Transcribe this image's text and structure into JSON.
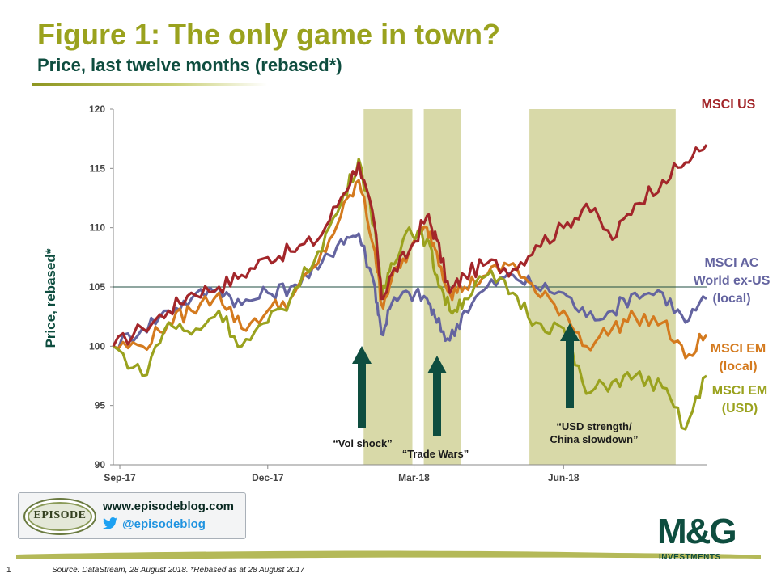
{
  "header": {
    "title": "Figure 1: The only game in town?",
    "subtitle": "Price, last twelve months (rebased*)"
  },
  "chart_data": {
    "type": "line",
    "ylabel": "Price, rebased*",
    "xlabel": "",
    "ylim": [
      90,
      120
    ],
    "y_ticks": [
      90,
      95,
      100,
      105,
      110,
      115,
      120
    ],
    "x_ticks": [
      "Sep-17",
      "Dec-17",
      "Mar-18",
      "Jun-18"
    ],
    "x_range": [
      "2017-08-28",
      "2018-08-28"
    ],
    "reference_line": 105,
    "shaded_periods": [
      {
        "start": "2018-01-29",
        "end": "2018-02-28",
        "label": "“Vol shock”"
      },
      {
        "start": "2018-03-07",
        "end": "2018-03-30",
        "label": "“Trade Wars”"
      },
      {
        "start": "2018-05-11",
        "end": "2018-08-09",
        "label": "“USD strength/ China slowdown”"
      }
    ],
    "series": [
      {
        "name": "MSCI US",
        "color": "#a3262a",
        "x": [
          "2017-08-28",
          "2017-09-15",
          "2017-10-01",
          "2017-10-15",
          "2017-11-01",
          "2017-11-15",
          "2017-12-01",
          "2017-12-15",
          "2018-01-01",
          "2018-01-15",
          "2018-01-26",
          "2018-02-05",
          "2018-02-09",
          "2018-02-15",
          "2018-02-26",
          "2018-03-09",
          "2018-03-15",
          "2018-03-23",
          "2018-04-01",
          "2018-04-15",
          "2018-05-01",
          "2018-05-15",
          "2018-06-01",
          "2018-06-15",
          "2018-07-01",
          "2018-07-15",
          "2018-08-01",
          "2018-08-15",
          "2018-08-28"
        ],
        "values": [
          100,
          101.5,
          103,
          104.5,
          105,
          106,
          107.5,
          108,
          109,
          112.5,
          115.5,
          110,
          104,
          106,
          108,
          111,
          109,
          104.5,
          106,
          107,
          106.5,
          108.5,
          110,
          112,
          109,
          112,
          114,
          115.5,
          117
        ]
      },
      {
        "name": "MSCI AC World ex-US (local)",
        "color": "#6464a0",
        "x": [
          "2017-08-28",
          "2017-09-15",
          "2017-10-01",
          "2017-10-15",
          "2017-11-01",
          "2017-11-15",
          "2017-12-01",
          "2017-12-15",
          "2018-01-01",
          "2018-01-15",
          "2018-01-26",
          "2018-02-05",
          "2018-02-09",
          "2018-02-15",
          "2018-02-26",
          "2018-03-09",
          "2018-03-15",
          "2018-03-23",
          "2018-04-01",
          "2018-04-15",
          "2018-05-01",
          "2018-05-15",
          "2018-06-01",
          "2018-06-15",
          "2018-07-01",
          "2018-07-15",
          "2018-08-01",
          "2018-08-15",
          "2018-08-28"
        ],
        "values": [
          100,
          101.5,
          103,
          104,
          105,
          103.5,
          104.5,
          105,
          106.5,
          109,
          109.5,
          105,
          101,
          103.5,
          104.5,
          104,
          102,
          100.5,
          103,
          105,
          106,
          105,
          104.5,
          102.5,
          103,
          104.5,
          104.5,
          102,
          104
        ]
      },
      {
        "name": "MSCI EM (local)",
        "color": "#d47a1e",
        "x": [
          "2017-08-28",
          "2017-09-15",
          "2017-10-01",
          "2017-10-15",
          "2017-11-01",
          "2017-11-15",
          "2017-12-01",
          "2017-12-15",
          "2018-01-01",
          "2018-01-15",
          "2018-01-26",
          "2018-02-05",
          "2018-02-09",
          "2018-02-15",
          "2018-02-26",
          "2018-03-09",
          "2018-03-15",
          "2018-03-23",
          "2018-04-01",
          "2018-04-15",
          "2018-05-01",
          "2018-05-15",
          "2018-06-01",
          "2018-06-15",
          "2018-07-01",
          "2018-07-15",
          "2018-08-01",
          "2018-08-15",
          "2018-08-28"
        ],
        "values": [
          100,
          100,
          102,
          103,
          104.5,
          101.5,
          103,
          104,
          107,
          111,
          114,
          108,
          103.5,
          105.5,
          108,
          110,
          108,
          104.5,
          105,
          106,
          107,
          104.5,
          103,
          100,
          101.5,
          102.5,
          102,
          99,
          101
        ]
      },
      {
        "name": "MSCI EM (USD)",
        "color": "#9aa21e",
        "x": [
          "2017-08-28",
          "2017-09-15",
          "2017-10-01",
          "2017-10-15",
          "2017-11-01",
          "2017-11-15",
          "2017-12-01",
          "2017-12-15",
          "2018-01-01",
          "2018-01-15",
          "2018-01-26",
          "2018-02-05",
          "2018-02-09",
          "2018-02-15",
          "2018-02-26",
          "2018-03-09",
          "2018-03-15",
          "2018-03-23",
          "2018-04-01",
          "2018-04-15",
          "2018-05-01",
          "2018-05-15",
          "2018-06-01",
          "2018-06-15",
          "2018-07-01",
          "2018-07-15",
          "2018-08-01",
          "2018-08-15",
          "2018-08-28"
        ],
        "values": [
          100,
          97.5,
          102,
          101,
          103,
          100,
          102,
          104,
          108,
          112,
          115.8,
          110,
          104,
          107,
          110,
          109,
          106,
          103,
          104,
          106,
          104.5,
          102,
          101.5,
          96,
          97,
          97.5,
          96.5,
          93,
          97.5
        ]
      }
    ]
  },
  "episode_box": {
    "logo_text": "EPISODE",
    "url": "www.episodeblog.com",
    "twitter": "@episodeblog"
  },
  "brand": {
    "logo": "M&G",
    "tagline": "INVESTMENTS"
  },
  "footer": {
    "page_number": "1",
    "source": "Source: DataStream, 28 August 2018. *Rebased as at 28 August 2017"
  }
}
